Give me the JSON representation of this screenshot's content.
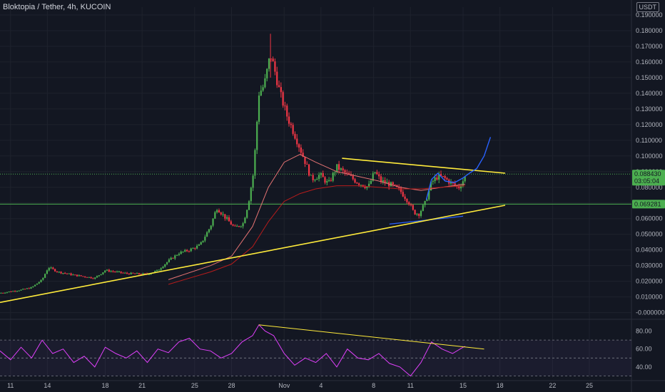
{
  "header": {
    "title": "Bloktopia / Tether, 4h, KUCOIN"
  },
  "currency_badge": "USDT",
  "colors": {
    "background": "#131722",
    "up": "#26a69a",
    "down": "#ef5350",
    "candle_up": "#4caf50",
    "candle_down": "#f23645",
    "trendline": "#ffeb3b",
    "projection": "#2962ff",
    "ma_fast": "#b71c1c",
    "ma_slow": "#e57373",
    "level_line": "#4caf50",
    "rsi_line": "#e040fb",
    "rsi_band": "#7e57c2"
  },
  "chart_data": [
    {
      "type": "candlestick",
      "title": "Bloktopia / Tether, 4h, KUCOIN",
      "x_ticks": [
        "11",
        "14",
        "18",
        "21",
        "25",
        "28",
        "Nov",
        "4",
        "8",
        "11",
        "15",
        "18",
        "22",
        "25"
      ],
      "y_ticks": [
        "0.190000",
        "0.180000",
        "0.170000",
        "0.160000",
        "0.150000",
        "0.140000",
        "0.130000",
        "0.120000",
        "0.110000",
        "0.100000",
        "0.090000",
        "0.080000",
        "0.070000",
        "0.060000",
        "0.050000",
        "0.040000",
        "0.030000",
        "0.020000",
        "0.010000",
        "-0.000000"
      ],
      "ylim": [
        -0.002,
        0.195
      ],
      "price_path": [
        {
          "x": 0,
          "y": 0.0125
        },
        {
          "x": 2,
          "y": 0.0145
        },
        {
          "x": 3,
          "y": 0.016
        },
        {
          "x": 4,
          "y": 0.021
        },
        {
          "x": 4.6,
          "y": 0.029
        },
        {
          "x": 5.5,
          "y": 0.026
        },
        {
          "x": 7,
          "y": 0.024
        },
        {
          "x": 9,
          "y": 0.022
        },
        {
          "x": 10,
          "y": 0.027
        },
        {
          "x": 12,
          "y": 0.025
        },
        {
          "x": 14,
          "y": 0.0245
        },
        {
          "x": 15,
          "y": 0.027
        },
        {
          "x": 16,
          "y": 0.033
        },
        {
          "x": 17,
          "y": 0.038
        },
        {
          "x": 18,
          "y": 0.04
        },
        {
          "x": 19,
          "y": 0.043
        },
        {
          "x": 20,
          "y": 0.055
        },
        {
          "x": 20.6,
          "y": 0.067
        },
        {
          "x": 21.5,
          "y": 0.06
        },
        {
          "x": 22.3,
          "y": 0.054
        },
        {
          "x": 23.1,
          "y": 0.057
        },
        {
          "x": 23.6,
          "y": 0.07
        },
        {
          "x": 24.1,
          "y": 0.09
        },
        {
          "x": 24.6,
          "y": 0.14
        },
        {
          "x": 25.1,
          "y": 0.145
        },
        {
          "x": 25.7,
          "y": 0.165
        },
        {
          "x": 26.2,
          "y": 0.152
        },
        {
          "x": 26.6,
          "y": 0.14
        },
        {
          "x": 27.3,
          "y": 0.125
        },
        {
          "x": 28.1,
          "y": 0.112
        },
        {
          "x": 28.9,
          "y": 0.098
        },
        {
          "x": 29.6,
          "y": 0.085
        },
        {
          "x": 30.4,
          "y": 0.088
        },
        {
          "x": 31.2,
          "y": 0.082
        },
        {
          "x": 32,
          "y": 0.093
        },
        {
          "x": 33,
          "y": 0.088
        },
        {
          "x": 34,
          "y": 0.083
        },
        {
          "x": 35,
          "y": 0.08
        },
        {
          "x": 35.6,
          "y": 0.09
        },
        {
          "x": 36.2,
          "y": 0.084
        },
        {
          "x": 37,
          "y": 0.082
        },
        {
          "x": 38,
          "y": 0.078
        },
        {
          "x": 38.8,
          "y": 0.071
        },
        {
          "x": 39.3,
          "y": 0.064
        },
        {
          "x": 39.8,
          "y": 0.063
        },
        {
          "x": 40.4,
          "y": 0.07
        },
        {
          "x": 41,
          "y": 0.083
        },
        {
          "x": 41.6,
          "y": 0.087
        },
        {
          "x": 42.2,
          "y": 0.086
        },
        {
          "x": 43,
          "y": 0.082
        },
        {
          "x": 43.6,
          "y": 0.08
        },
        {
          "x": 44.2,
          "y": 0.0865
        }
      ],
      "moving_averages": [
        {
          "name": "",
          "values": [
            {
              "x": 16,
              "y": 0.021
            },
            {
              "x": 20,
              "y": 0.03
            },
            {
              "x": 22,
              "y": 0.036
            },
            {
              "x": 24,
              "y": 0.055
            },
            {
              "x": 25.5,
              "y": 0.08
            },
            {
              "x": 27,
              "y": 0.096
            },
            {
              "x": 28.5,
              "y": 0.101
            },
            {
              "x": 30,
              "y": 0.096
            },
            {
              "x": 32,
              "y": 0.09
            },
            {
              "x": 34,
              "y": 0.087
            },
            {
              "x": 36,
              "y": 0.084
            },
            {
              "x": 38,
              "y": 0.08
            },
            {
              "x": 40,
              "y": 0.078
            },
            {
              "x": 42,
              "y": 0.08
            },
            {
              "x": 44.2,
              "y": 0.082
            }
          ]
        },
        {
          "name": "",
          "values": [
            {
              "x": 16,
              "y": 0.018
            },
            {
              "x": 20,
              "y": 0.026
            },
            {
              "x": 22,
              "y": 0.031
            },
            {
              "x": 24,
              "y": 0.042
            },
            {
              "x": 25.5,
              "y": 0.058
            },
            {
              "x": 27,
              "y": 0.071
            },
            {
              "x": 28.5,
              "y": 0.076
            },
            {
              "x": 30,
              "y": 0.079
            },
            {
              "x": 32,
              "y": 0.081
            },
            {
              "x": 34,
              "y": 0.081
            },
            {
              "x": 36,
              "y": 0.08
            },
            {
              "x": 38,
              "y": 0.079
            },
            {
              "x": 40,
              "y": 0.079
            },
            {
              "x": 42,
              "y": 0.08
            },
            {
              "x": 44.2,
              "y": 0.081
            }
          ]
        }
      ],
      "trendlines": [
        {
          "name": "",
          "points": [
            {
              "x": 0,
              "y": 0.0065
            },
            {
              "x": 48,
              "y": 0.0685
            }
          ]
        },
        {
          "name": "",
          "points": [
            {
              "x": 32.5,
              "y": 0.0985
            },
            {
              "x": 48,
              "y": 0.089
            }
          ]
        }
      ],
      "projection": [
        {
          "x": 40.5,
          "y": 0.072
        },
        {
          "x": 41,
          "y": 0.085
        },
        {
          "x": 41.6,
          "y": 0.089
        },
        {
          "x": 42.3,
          "y": 0.084
        },
        {
          "x": 43.2,
          "y": 0.083
        },
        {
          "x": 44,
          "y": 0.086
        },
        {
          "x": 44.6,
          "y": 0.089
        },
        {
          "x": 45.3,
          "y": 0.092
        },
        {
          "x": 46,
          "y": 0.1
        },
        {
          "x": 46.6,
          "y": 0.112
        }
      ],
      "support_channel": [
        {
          "x": 37,
          "y": 0.0565
        },
        {
          "x": 44,
          "y": 0.0615
        }
      ],
      "horizontal_levels": [
        {
          "value": 0.08843,
          "label": "0.088430",
          "countdown": "03:05:04",
          "style": "dotted"
        },
        {
          "value": 0.06928,
          "label": "0.069281",
          "style": "solid"
        },
        {
          "value": 0.0805,
          "label": "0.080000",
          "style": "none"
        }
      ],
      "last_price": 0.08843
    },
    {
      "type": "line",
      "name": "RSI",
      "y_ticks": [
        "80.00",
        "60.00",
        "40.00"
      ],
      "ylim": [
        28,
        90
      ],
      "bands": [
        70,
        50,
        30
      ],
      "path": [
        {
          "x": 0,
          "y": 58
        },
        {
          "x": 1,
          "y": 48
        },
        {
          "x": 2,
          "y": 62
        },
        {
          "x": 3,
          "y": 50
        },
        {
          "x": 4,
          "y": 70
        },
        {
          "x": 5,
          "y": 55
        },
        {
          "x": 6,
          "y": 60
        },
        {
          "x": 7,
          "y": 45
        },
        {
          "x": 8,
          "y": 52
        },
        {
          "x": 9,
          "y": 40
        },
        {
          "x": 10,
          "y": 62
        },
        {
          "x": 11,
          "y": 55
        },
        {
          "x": 12,
          "y": 50
        },
        {
          "x": 13,
          "y": 58
        },
        {
          "x": 14,
          "y": 45
        },
        {
          "x": 15,
          "y": 60
        },
        {
          "x": 16,
          "y": 56
        },
        {
          "x": 17,
          "y": 68
        },
        {
          "x": 18,
          "y": 72
        },
        {
          "x": 19,
          "y": 60
        },
        {
          "x": 20,
          "y": 58
        },
        {
          "x": 21,
          "y": 50
        },
        {
          "x": 22,
          "y": 55
        },
        {
          "x": 23,
          "y": 68
        },
        {
          "x": 24,
          "y": 75
        },
        {
          "x": 24.6,
          "y": 87
        },
        {
          "x": 25.2,
          "y": 80
        },
        {
          "x": 26,
          "y": 75
        },
        {
          "x": 27,
          "y": 55
        },
        {
          "x": 28,
          "y": 42
        },
        {
          "x": 29,
          "y": 50
        },
        {
          "x": 30,
          "y": 45
        },
        {
          "x": 31,
          "y": 55
        },
        {
          "x": 32,
          "y": 40
        },
        {
          "x": 33,
          "y": 60
        },
        {
          "x": 34,
          "y": 50
        },
        {
          "x": 35,
          "y": 48
        },
        {
          "x": 36,
          "y": 55
        },
        {
          "x": 37,
          "y": 44
        },
        {
          "x": 38,
          "y": 40
        },
        {
          "x": 39,
          "y": 30
        },
        {
          "x": 40,
          "y": 45
        },
        {
          "x": 41,
          "y": 68
        },
        {
          "x": 42,
          "y": 60
        },
        {
          "x": 43,
          "y": 55
        },
        {
          "x": 44,
          "y": 62
        },
        {
          "x": 44.2,
          "y": 63
        }
      ],
      "divergence_line": [
        {
          "x": 24.6,
          "y": 87
        },
        {
          "x": 46,
          "y": 60
        }
      ]
    }
  ]
}
